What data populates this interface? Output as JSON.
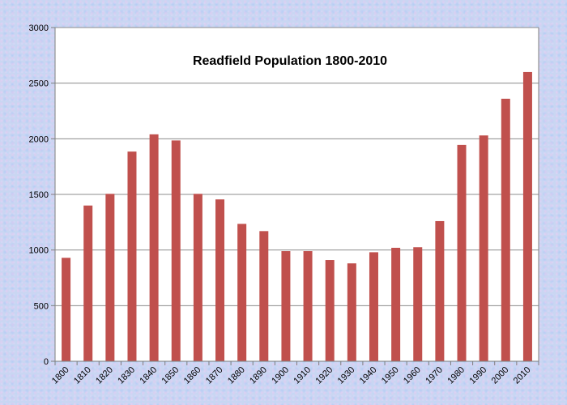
{
  "colors": {
    "bar": "#c0504d",
    "grid": "#8c8c8c",
    "plot_area": "#ffffff",
    "axis": "#7f7f7f"
  },
  "chart_data": {
    "type": "bar",
    "title": "Readfield Population 1800-2010",
    "xlabel": "",
    "ylabel": "",
    "categories": [
      "1800",
      "1810",
      "1820",
      "1830",
      "1840",
      "1850",
      "1860",
      "1870",
      "1880",
      "1890",
      "1900",
      "1910",
      "1920",
      "1930",
      "1940",
      "1950",
      "1960",
      "1970",
      "1980",
      "1990",
      "2000",
      "2010"
    ],
    "values": [
      930,
      1400,
      1505,
      1885,
      2040,
      1985,
      1505,
      1455,
      1235,
      1170,
      990,
      990,
      910,
      880,
      980,
      1020,
      1025,
      1260,
      1945,
      2030,
      2360,
      2600
    ],
    "ylim": [
      0,
      3000
    ],
    "yticks": [
      0,
      500,
      1000,
      1500,
      2000,
      2500,
      3000
    ],
    "grid": true,
    "legend": "none"
  }
}
